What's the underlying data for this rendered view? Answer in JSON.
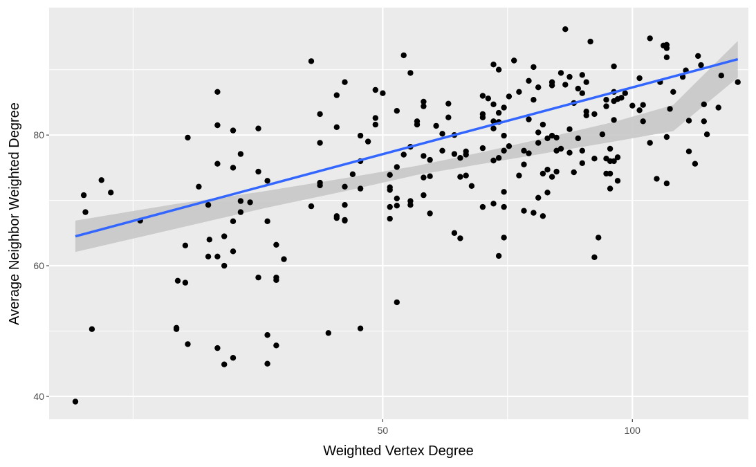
{
  "chart_data": {
    "type": "scatter",
    "title": "",
    "xlabel": "Weighted Vertex Degree",
    "ylabel": "Average Neighbor Weighted Degree",
    "xscale": "log",
    "xlim": [
      19.8,
      138
    ],
    "ylim": [
      36.5,
      99.5
    ],
    "x_ticks": [
      50,
      100
    ],
    "y_ticks": [
      40,
      60,
      80
    ],
    "grid": true,
    "legend": "none",
    "colors": {
      "panel": "#ebebeb",
      "grid": "#ffffff",
      "points": "#000000",
      "fit_line": "#3366ff",
      "confidence_band": "#c8c8c8"
    },
    "fit": {
      "method": "linear model on log10(x)",
      "x": [
        21.3,
        28,
        36,
        45,
        55,
        66,
        80,
        95,
        112,
        134
      ],
      "y": [
        64.5,
        67.5,
        70.1,
        72.4,
        74.6,
        76.5,
        78.6,
        80.5,
        82.6,
        91.6
      ],
      "lower": [
        62.1,
        65.6,
        68.8,
        71.4,
        73.9,
        75.6,
        77.4,
        79.0,
        80.6,
        88.8
      ],
      "upper": [
        66.9,
        69.4,
        71.4,
        73.4,
        75.3,
        77.4,
        79.8,
        82.0,
        84.6,
        94.4
      ]
    },
    "points": [
      [
        21.3,
        39.2
      ],
      [
        21.8,
        70.8
      ],
      [
        21.9,
        68.2
      ],
      [
        22.3,
        50.3
      ],
      [
        22.9,
        73.1
      ],
      [
        23.5,
        71.2
      ],
      [
        25.5,
        66.9
      ],
      [
        28.2,
        50.5
      ],
      [
        28.2,
        50.3
      ],
      [
        28.3,
        57.7
      ],
      [
        28.9,
        57.4
      ],
      [
        28.9,
        63.1
      ],
      [
        29.1,
        79.6
      ],
      [
        29.1,
        48.0
      ],
      [
        30.0,
        72.1
      ],
      [
        30.8,
        61.4
      ],
      [
        30.8,
        69.3
      ],
      [
        30.9,
        64.0
      ],
      [
        31.6,
        86.6
      ],
      [
        31.6,
        81.5
      ],
      [
        31.6,
        75.6
      ],
      [
        31.6,
        61.4
      ],
      [
        31.6,
        47.4
      ],
      [
        32.2,
        64.5
      ],
      [
        32.2,
        60.0
      ],
      [
        32.2,
        44.9
      ],
      [
        33.0,
        45.9
      ],
      [
        33.0,
        75.0
      ],
      [
        33.0,
        80.7
      ],
      [
        33.0,
        66.8
      ],
      [
        33.0,
        62.2
      ],
      [
        33.7,
        69.9
      ],
      [
        33.7,
        68.2
      ],
      [
        33.7,
        77.1
      ],
      [
        34.6,
        69.7
      ],
      [
        35.4,
        81.0
      ],
      [
        35.4,
        74.4
      ],
      [
        35.4,
        58.2
      ],
      [
        36.3,
        73.0
      ],
      [
        36.3,
        66.8
      ],
      [
        36.3,
        49.4
      ],
      [
        36.3,
        45.0
      ],
      [
        37.2,
        58.2
      ],
      [
        37.2,
        57.8
      ],
      [
        37.2,
        63.2
      ],
      [
        37.2,
        47.8
      ],
      [
        38.0,
        61.0
      ],
      [
        41.0,
        69.1
      ],
      [
        41.0,
        91.3
      ],
      [
        42.0,
        83.2
      ],
      [
        42.0,
        78.8
      ],
      [
        42.0,
        72.7
      ],
      [
        42.0,
        72.3
      ],
      [
        43.0,
        49.7
      ],
      [
        44.0,
        86.1
      ],
      [
        44.0,
        81.2
      ],
      [
        44.0,
        67.6
      ],
      [
        44.0,
        67.3
      ],
      [
        45.0,
        88.1
      ],
      [
        45.0,
        72.1
      ],
      [
        45.0,
        69.3
      ],
      [
        45.0,
        67.0
      ],
      [
        45.0,
        66.9
      ],
      [
        46.0,
        74.0
      ],
      [
        47.0,
        79.9
      ],
      [
        47.0,
        76.0
      ],
      [
        47.0,
        71.8
      ],
      [
        47.0,
        50.4
      ],
      [
        48.0,
        79.0
      ],
      [
        49.0,
        86.9
      ],
      [
        49.0,
        82.6
      ],
      [
        49.0,
        81.6
      ],
      [
        50.0,
        86.4
      ],
      [
        51.0,
        73.9
      ],
      [
        51.0,
        72.0
      ],
      [
        51.0,
        71.6
      ],
      [
        51.0,
        69.0
      ],
      [
        51.0,
        67.2
      ],
      [
        52.0,
        83.7
      ],
      [
        52.0,
        75.1
      ],
      [
        52.0,
        70.3
      ],
      [
        52.0,
        69.2
      ],
      [
        52.0,
        54.4
      ],
      [
        53.0,
        92.2
      ],
      [
        53.0,
        77.0
      ],
      [
        54.0,
        89.5
      ],
      [
        54.0,
        78.2
      ],
      [
        54.0,
        69.9
      ],
      [
        54.0,
        69.3
      ],
      [
        55.0,
        82.1
      ],
      [
        55.0,
        81.6
      ],
      [
        56.0,
        85.1
      ],
      [
        56.0,
        84.4
      ],
      [
        56.0,
        76.8
      ],
      [
        56.0,
        73.5
      ],
      [
        56.0,
        70.8
      ],
      [
        57.0,
        76.2
      ],
      [
        57.0,
        73.7
      ],
      [
        57.0,
        68.0
      ],
      [
        58.0,
        81.4
      ],
      [
        59.0,
        80.2
      ],
      [
        59.0,
        77.6
      ],
      [
        60.0,
        84.8
      ],
      [
        60.0,
        82.7
      ],
      [
        61.0,
        80.0
      ],
      [
        61.0,
        77.1
      ],
      [
        61.0,
        65.0
      ],
      [
        62.0,
        76.5
      ],
      [
        62.0,
        73.6
      ],
      [
        62.0,
        64.2
      ],
      [
        63.0,
        77.5
      ],
      [
        63.0,
        77.0
      ],
      [
        63.0,
        73.8
      ],
      [
        64.0,
        72.2
      ],
      [
        66.0,
        86.0
      ],
      [
        66.0,
        83.2
      ],
      [
        66.0,
        82.7
      ],
      [
        66.0,
        78.0
      ],
      [
        66.0,
        69.0
      ],
      [
        67.0,
        85.6
      ],
      [
        68.0,
        90.8
      ],
      [
        68.0,
        84.7
      ],
      [
        68.0,
        82.1
      ],
      [
        68.0,
        81.0
      ],
      [
        68.0,
        76.1
      ],
      [
        68.0,
        69.5
      ],
      [
        69.0,
        90.0
      ],
      [
        69.0,
        83.4
      ],
      [
        69.0,
        82.0
      ],
      [
        69.0,
        76.5
      ],
      [
        69.0,
        61.5
      ],
      [
        70.0,
        84.2
      ],
      [
        70.0,
        79.9
      ],
      [
        70.0,
        77.6
      ],
      [
        70.0,
        71.3
      ],
      [
        70.0,
        69.0
      ],
      [
        70.0,
        64.3
      ],
      [
        71.0,
        85.9
      ],
      [
        71.0,
        78.3
      ],
      [
        72.0,
        91.4
      ],
      [
        73.0,
        86.6
      ],
      [
        73.0,
        73.8
      ],
      [
        74.0,
        77.6
      ],
      [
        74.0,
        75.5
      ],
      [
        74.0,
        68.4
      ],
      [
        75.0,
        88.3
      ],
      [
        75.0,
        82.4
      ],
      [
        75.0,
        77.2
      ],
      [
        76.0,
        90.4
      ],
      [
        76.0,
        85.4
      ],
      [
        76.0,
        68.1
      ],
      [
        77.0,
        87.3
      ],
      [
        77.0,
        80.4
      ],
      [
        77.0,
        78.8
      ],
      [
        77.0,
        70.4
      ],
      [
        78.0,
        81.6
      ],
      [
        78.0,
        74.1
      ],
      [
        78.0,
        67.6
      ],
      [
        79.0,
        79.5
      ],
      [
        79.0,
        74.7
      ],
      [
        79.0,
        71.2
      ],
      [
        80.0,
        88.1
      ],
      [
        80.0,
        87.6
      ],
      [
        80.0,
        79.9
      ],
      [
        80.0,
        73.6
      ],
      [
        81.0,
        79.6
      ],
      [
        81.0,
        77.6
      ],
      [
        81.0,
        74.4
      ],
      [
        82.0,
        89.5
      ],
      [
        82.0,
        77.9
      ],
      [
        83.0,
        96.2
      ],
      [
        83.0,
        87.7
      ],
      [
        84.0,
        88.9
      ],
      [
        84.0,
        80.9
      ],
      [
        84.0,
        77.3
      ],
      [
        85.0,
        84.9
      ],
      [
        85.0,
        74.3
      ],
      [
        86.0,
        87.1
      ],
      [
        86.0,
        79.5
      ],
      [
        87.0,
        89.2
      ],
      [
        87.0,
        86.4
      ],
      [
        87.0,
        77.6
      ],
      [
        87.0,
        75.7
      ],
      [
        88.0,
        88.1
      ],
      [
        88.0,
        83.6
      ],
      [
        88.0,
        83.0
      ],
      [
        89.0,
        94.3
      ],
      [
        90.0,
        83.2
      ],
      [
        90.0,
        76.4
      ],
      [
        90.0,
        61.3
      ],
      [
        91.0,
        64.3
      ],
      [
        92.0,
        80.1
      ],
      [
        93.0,
        85.4
      ],
      [
        93.0,
        84.4
      ],
      [
        93.0,
        76.4
      ],
      [
        93.0,
        74.1
      ],
      [
        94.0,
        77.9
      ],
      [
        94.0,
        76.0
      ],
      [
        94.0,
        74.1
      ],
      [
        94.0,
        71.8
      ],
      [
        95.0,
        90.5
      ],
      [
        95.0,
        86.6
      ],
      [
        95.0,
        85.2
      ],
      [
        95.0,
        82.3
      ],
      [
        95.0,
        76.0
      ],
      [
        96.0,
        85.5
      ],
      [
        96.0,
        76.6
      ],
      [
        96.0,
        73.0
      ],
      [
        97.0,
        85.7
      ],
      [
        98.0,
        86.4
      ],
      [
        100.0,
        84.5
      ],
      [
        102.0,
        88.7
      ],
      [
        102.0,
        83.8
      ],
      [
        103.0,
        84.6
      ],
      [
        103.0,
        82.1
      ],
      [
        105.0,
        94.8
      ],
      [
        105.0,
        78.8
      ],
      [
        107.0,
        73.3
      ],
      [
        108.0,
        88.1
      ],
      [
        109.0,
        93.7
      ],
      [
        110.0,
        93.8
      ],
      [
        110.0,
        93.3
      ],
      [
        110.0,
        91.9
      ],
      [
        110.0,
        79.7
      ],
      [
        110.0,
        72.6
      ],
      [
        111.0,
        84.0
      ],
      [
        112.0,
        86.6
      ],
      [
        115.0,
        88.9
      ],
      [
        116.0,
        89.9
      ],
      [
        117.0,
        82.2
      ],
      [
        117.0,
        77.5
      ],
      [
        119.0,
        75.6
      ],
      [
        120.0,
        92.1
      ],
      [
        121.0,
        90.7
      ],
      [
        122.0,
        84.7
      ],
      [
        122.0,
        82.1
      ],
      [
        123.0,
        80.1
      ],
      [
        127.0,
        84.2
      ],
      [
        128.0,
        89.1
      ],
      [
        134.0,
        88.1
      ]
    ]
  }
}
